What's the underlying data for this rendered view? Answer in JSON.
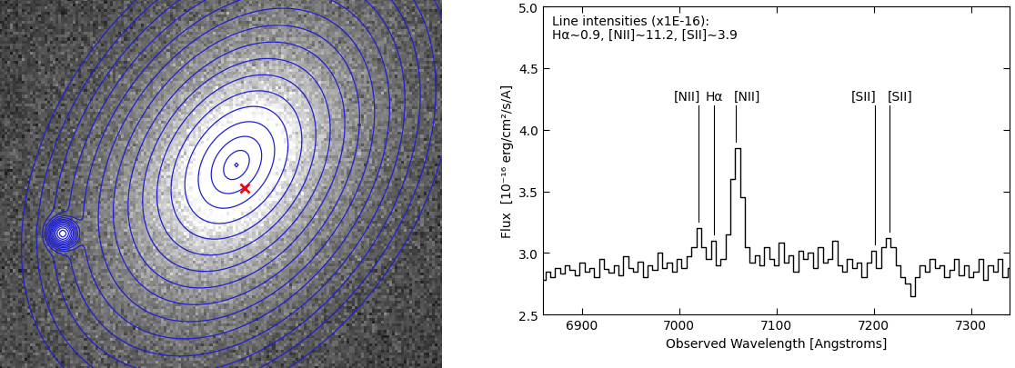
{
  "chart_data": {
    "type": "line",
    "xlabel": "Observed Wavelength [Angstroms]",
    "ylabel": "Flux  [10⁻¹⁶ erg/cm²/s/A]",
    "annotation": [
      "Line intensities (x1E-16):",
      "Hα∼0.9, [NII]∼11.2, [SII]∼3.9"
    ],
    "line_labels": [
      {
        "label": "[NII]",
        "x": 7020
      },
      {
        "label": "Hα",
        "x": 7036
      },
      {
        "label": "[NII]",
        "x": 7058
      },
      {
        "label": "[SII]",
        "x": 7201
      },
      {
        "label": "[SII]",
        "x": 7216
      }
    ],
    "x": [
      6860,
      6865,
      6870,
      6875,
      6880,
      6885,
      6890,
      6895,
      6900,
      6905,
      6910,
      6915,
      6920,
      6925,
      6930,
      6935,
      6940,
      6945,
      6950,
      6955,
      6960,
      6965,
      6970,
      6975,
      6980,
      6985,
      6990,
      6995,
      7000,
      7005,
      7010,
      7015,
      7020,
      7025,
      7030,
      7035,
      7040,
      7045,
      7050,
      7055,
      7060,
      7065,
      7070,
      7075,
      7080,
      7085,
      7090,
      7095,
      7100,
      7105,
      7110,
      7115,
      7120,
      7125,
      7130,
      7135,
      7140,
      7145,
      7150,
      7155,
      7160,
      7165,
      7170,
      7175,
      7180,
      7185,
      7190,
      7195,
      7200,
      7205,
      7210,
      7215,
      7220,
      7225,
      7230,
      7235,
      7240,
      7245,
      7250,
      7255,
      7260,
      7265,
      7270,
      7275,
      7280,
      7285,
      7290,
      7295,
      7300,
      7305,
      7310,
      7315,
      7320,
      7325,
      7330,
      7335,
      7340
    ],
    "values": [
      2.78,
      2.85,
      2.8,
      2.88,
      2.83,
      2.9,
      2.86,
      2.82,
      2.92,
      2.85,
      2.88,
      2.8,
      2.95,
      2.87,
      2.84,
      2.9,
      2.82,
      2.97,
      2.88,
      2.85,
      2.93,
      2.8,
      2.9,
      2.86,
      3.0,
      2.88,
      2.92,
      2.85,
      2.95,
      2.88,
      2.97,
      3.05,
      3.2,
      3.05,
      2.95,
      3.1,
      2.9,
      2.95,
      3.15,
      3.6,
      3.85,
      3.45,
      3.05,
      2.92,
      2.98,
      2.9,
      3.05,
      2.95,
      2.9,
      3.08,
      2.92,
      2.98,
      2.85,
      3.02,
      2.95,
      3.0,
      2.88,
      3.05,
      2.92,
      2.95,
      3.1,
      2.9,
      2.85,
      2.95,
      2.88,
      2.92,
      2.8,
      2.92,
      3.02,
      2.88,
      3.05,
      3.12,
      3.05,
      2.9,
      2.8,
      2.75,
      2.65,
      2.8,
      2.9,
      2.85,
      2.95,
      2.88,
      2.9,
      2.8,
      2.86,
      2.95,
      2.82,
      2.9,
      2.8,
      2.85,
      2.95,
      2.78,
      2.9,
      2.85,
      2.95,
      2.8,
      2.88
    ],
    "color": "#000000",
    "line_style": "steps",
    "xlim": [
      6860,
      7340
    ],
    "xticks": [
      6900,
      7000,
      7100,
      7200,
      7300
    ],
    "ylim": [
      2.5,
      5.0
    ],
    "yticks": [
      2.5,
      3.0,
      3.5,
      4.0,
      4.5,
      5.0
    ],
    "grid": false
  }
}
